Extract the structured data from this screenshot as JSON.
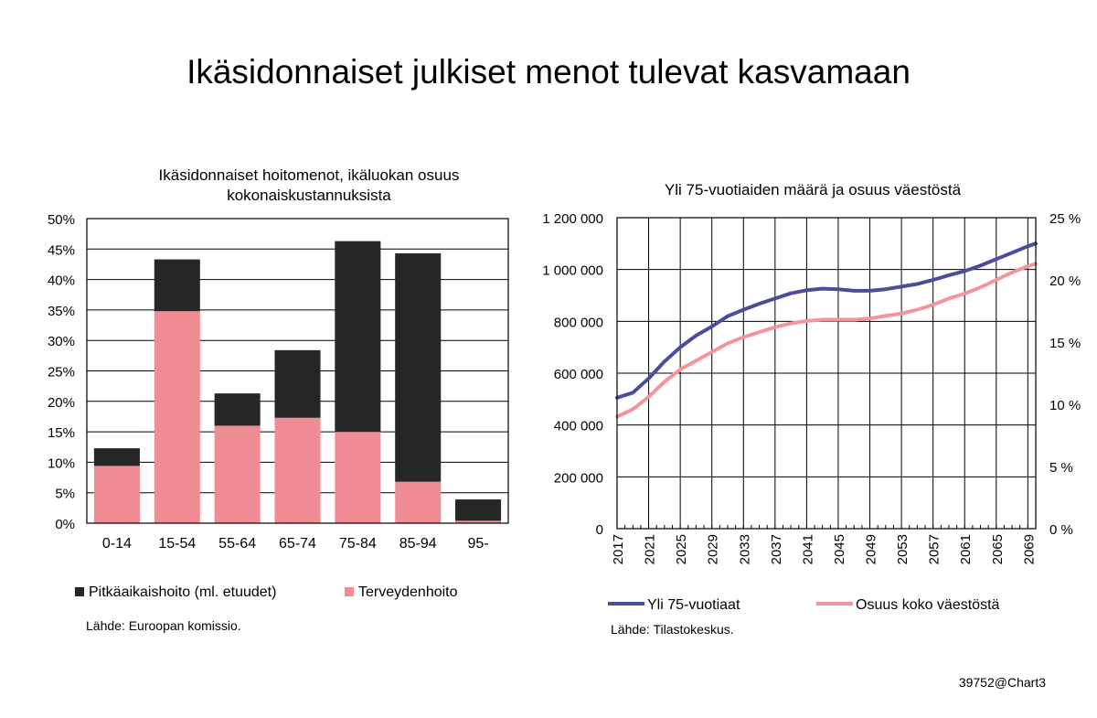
{
  "page": {
    "title": "Ikäsidonnaiset julkiset menot tulevat kasvamaan",
    "footer_id": "39752@Chart3"
  },
  "chart_data": [
    {
      "type": "bar",
      "stacked": true,
      "title_lines": [
        "Ikäsidonnaiset hoitomenot, ikäluokan osuus",
        "kokonaiskustannuksista"
      ],
      "categories": [
        "0-14",
        "15-54",
        "55-64",
        "65-74",
        "75-84",
        "85-94",
        "95-"
      ],
      "series": [
        {
          "name": "Terveydenhoito",
          "color": "#f08c94",
          "values": [
            9.4,
            34.8,
            16.0,
            17.3,
            15.0,
            6.8,
            0.4
          ]
        },
        {
          "name": "Pitkäaikaishoito (ml. etuudet)",
          "color": "#262626",
          "values": [
            2.9,
            8.5,
            5.3,
            11.1,
            31.3,
            37.5,
            3.5
          ]
        }
      ],
      "legend_order": [
        "Pitkäaikaishoito (ml. etuudet)",
        "Terveydenhoito"
      ],
      "ylim": [
        0,
        50
      ],
      "yticks": [
        "0%",
        "5%",
        "10%",
        "15%",
        "20%",
        "25%",
        "30%",
        "35%",
        "40%",
        "45%",
        "50%"
      ],
      "grid": true,
      "legend_position": "bottom",
      "source": "Lähde: Euroopan komissio."
    },
    {
      "type": "line",
      "title": "Yli 75-vuotiaiden määrä ja osuus väestöstä",
      "x": [
        2017,
        2019,
        2021,
        2023,
        2025,
        2027,
        2029,
        2031,
        2033,
        2035,
        2037,
        2039,
        2041,
        2043,
        2045,
        2047,
        2049,
        2051,
        2053,
        2055,
        2057,
        2059,
        2061,
        2063,
        2065,
        2067,
        2069,
        2070
      ],
      "xticks": [
        "2017",
        "2021",
        "2025",
        "2029",
        "2033",
        "2037",
        "2041",
        "2045",
        "2049",
        "2053",
        "2057",
        "2061",
        "2065",
        "2069"
      ],
      "series": [
        {
          "name": "Yli 75-vuotiaat",
          "axis": "left",
          "color": "#4b4d9a",
          "values": [
            505000,
            525000,
            580000,
            645000,
            700000,
            745000,
            780000,
            820000,
            845000,
            868000,
            888000,
            908000,
            920000,
            926000,
            924000,
            918000,
            918000,
            924000,
            934000,
            944000,
            960000,
            978000,
            994000,
            1015000,
            1040000,
            1065000,
            1090000,
            1100000
          ]
        },
        {
          "name": "Osuus koko väestöstä",
          "axis": "right",
          "color": "#f2969c",
          "values": [
            9.0,
            9.6,
            10.6,
            11.8,
            12.8,
            13.5,
            14.2,
            14.9,
            15.4,
            15.8,
            16.2,
            16.5,
            16.7,
            16.8,
            16.8,
            16.8,
            16.9,
            17.1,
            17.3,
            17.6,
            18.0,
            18.5,
            18.9,
            19.4,
            20.0,
            20.6,
            21.1,
            21.3
          ]
        }
      ],
      "y_left_lim": [
        0,
        1200000
      ],
      "y_left_ticks": [
        "0",
        "200 000",
        "400 000",
        "600 000",
        "800 000",
        "1 000 000",
        "1 200 000"
      ],
      "y_right_lim": [
        0,
        25
      ],
      "y_right_ticks": [
        "0 %",
        "5 %",
        "10 %",
        "15 %",
        "20 %",
        "25 %"
      ],
      "grid": true,
      "legend_position": "bottom",
      "source": "Lähde: Tilastokeskus."
    }
  ]
}
